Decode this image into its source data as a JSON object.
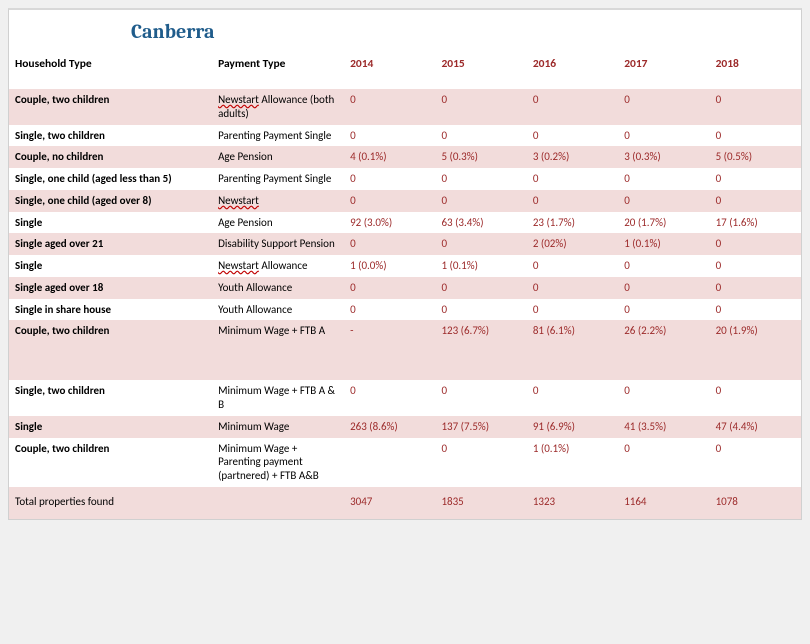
{
  "title": "Canberra",
  "colors": {
    "title": "#1f5c8b",
    "headerYear": "#9c2a2a",
    "value": "#9c2a2a",
    "bandA": "#f2dcdb",
    "bandB": "#ffffff",
    "pageBg": "#ffffff",
    "bodyBg": "#f0f0f0"
  },
  "columns": {
    "household": "Household Type",
    "payment": "Payment Type",
    "years": [
      "2014",
      "2015",
      "2016",
      "2017",
      "2018"
    ]
  },
  "rows": [
    {
      "band": 0,
      "spellcheck": true,
      "hh": "Couple, two children",
      "pay": "Newstart Allowance (both adults)",
      "v": [
        "0",
        "0",
        "0",
        "0",
        "0"
      ]
    },
    {
      "band": 1,
      "hh": "Single, two children",
      "pay": "Parenting Payment Single",
      "v": [
        "0",
        "0",
        "0",
        "0",
        "0"
      ]
    },
    {
      "band": 0,
      "hh": "Couple, no children",
      "pay": "Age Pension",
      "v": [
        "4 (0.1%)",
        "5 (0.3%)",
        "3 (0.2%)",
        "3 (0.3%)",
        "5 (0.5%)"
      ]
    },
    {
      "band": 1,
      "hh": "Single, one child (aged less than 5)",
      "pay": "Parenting Payment Single",
      "v": [
        "0",
        "0",
        "0",
        "0",
        "0"
      ]
    },
    {
      "band": 0,
      "spellcheck": true,
      "hh": "Single, one child (aged over 8)",
      "pay": "Newstart",
      "v": [
        "0",
        "0",
        "0",
        "0",
        "0"
      ]
    },
    {
      "band": 1,
      "hh": "Single",
      "pay": "Age Pension",
      "v": [
        "92 (3.0%)",
        "63 (3.4%)",
        "23 (1.7%)",
        "20 (1.7%)",
        "17 (1.6%)"
      ]
    },
    {
      "band": 0,
      "hh": "Single aged over 21",
      "pay": "Disability Support Pension",
      "v": [
        "0",
        "0",
        "2 (02%)",
        "1 (0.1%)",
        "0"
      ]
    },
    {
      "band": 1,
      "spellcheck": true,
      "hh": "Single",
      "pay": "Newstart Allowance",
      "v": [
        "1 (0.0%)",
        "1 (0.1%)",
        "0",
        "0",
        "0"
      ]
    },
    {
      "band": 0,
      "hh": "Single aged over 18",
      "pay": "Youth Allowance",
      "v": [
        "0",
        "0",
        "0",
        "0",
        "0"
      ]
    },
    {
      "band": 1,
      "hh": "Single in share house",
      "pay": "Youth Allowance",
      "v": [
        "0",
        "0",
        "0",
        "0",
        "0"
      ]
    },
    {
      "band": 0,
      "hh": "Couple, two children",
      "pay": "Minimum Wage + FTB A",
      "v": [
        "-",
        "123 (6.7%)",
        "81 (6.1%)",
        "26 (2.2%)",
        "20 (1.9%)"
      ],
      "tall": true
    },
    {
      "band": 1,
      "hh": "Single, two children",
      "pay": "Minimum Wage + FTB A & B",
      "v": [
        "0",
        "0",
        "0",
        "0",
        "0"
      ]
    },
    {
      "band": 0,
      "hh": "Single",
      "pay": "Minimum Wage",
      "v": [
        "263 (8.6%)",
        "137 (7.5%)",
        "91 (6.9%)",
        "41 (3.5%)",
        "47 (4.4%)"
      ]
    },
    {
      "band": 1,
      "hh": "Couple, two children",
      "pay": "Minimum Wage + Parenting payment (partnered) + FTB A&B",
      "v": [
        "",
        "0",
        "1 (0.1%)",
        "0",
        "0"
      ]
    }
  ],
  "total": {
    "label": "Total properties found",
    "v": [
      "3047",
      "1835",
      "1323",
      "1164",
      "1078"
    ]
  }
}
